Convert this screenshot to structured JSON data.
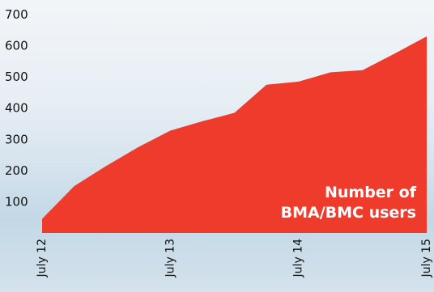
{
  "chart_data": {
    "type": "area",
    "x": [
      "July 12",
      "",
      "",
      "",
      "July 13",
      "",
      "",
      "",
      "July 14",
      "",
      "",
      "",
      "July 15"
    ],
    "y": [
      45,
      150,
      215,
      275,
      328,
      358,
      385,
      475,
      485,
      515,
      522,
      575,
      630
    ],
    "x_tick_labels": [
      "July 12",
      "July 13",
      "July 14",
      "July 15"
    ],
    "y_tick_labels": [
      "100",
      "200",
      "300",
      "400",
      "500",
      "600",
      "700"
    ],
    "y_ticks": [
      100,
      200,
      300,
      400,
      500,
      600,
      700
    ],
    "ylim": [
      0,
      700
    ],
    "annotation": [
      "Number of",
      "BMA/BMC users"
    ],
    "grid": false,
    "colors": {
      "area": "#ef3b2c",
      "text": "#111111",
      "annotation": "#ffffff"
    }
  }
}
